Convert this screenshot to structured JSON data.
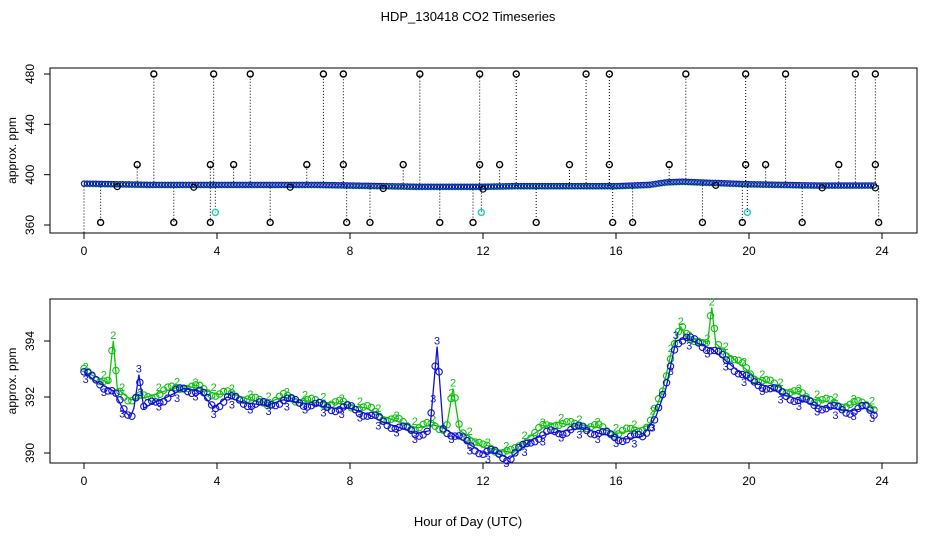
{
  "title": "HDP_130418  CO2 Timeseries",
  "xlabel": "Hour of Day (UTC)",
  "colors": {
    "black": "#000000",
    "blue": "#1010d0",
    "green": "#10c010",
    "cyan": "#20c8c8"
  },
  "chart_data": [
    {
      "type": "scatter",
      "name": "top",
      "ylabel": "approx. ppm",
      "xlim": [
        0,
        24
      ],
      "ylim": [
        360,
        480
      ],
      "xticks": [
        "0",
        "4",
        "8",
        "12",
        "16",
        "20",
        "24"
      ],
      "yticks": [
        "360",
        "400",
        "440",
        "480"
      ],
      "base": [
        [
          0,
          393
        ],
        [
          1,
          392.5
        ],
        [
          2,
          392
        ],
        [
          3,
          392
        ],
        [
          4,
          392
        ],
        [
          5,
          392
        ],
        [
          6,
          392
        ],
        [
          7,
          392
        ],
        [
          8,
          391.5
        ],
        [
          9,
          391
        ],
        [
          10,
          390.5
        ],
        [
          11,
          390.5
        ],
        [
          12,
          390.5
        ],
        [
          13,
          391
        ],
        [
          14,
          391
        ],
        [
          15,
          391
        ],
        [
          16,
          391
        ],
        [
          17,
          392
        ],
        [
          17.5,
          394
        ],
        [
          18,
          394.5
        ],
        [
          19,
          393.5
        ],
        [
          20,
          392.5
        ],
        [
          21,
          392
        ],
        [
          22,
          391.5
        ],
        [
          23,
          391.5
        ],
        [
          23.7,
          391.5
        ]
      ],
      "spikes_high": [
        2.1,
        3.9,
        5.0,
        7.2,
        7.8,
        10.1,
        11.9,
        13.0,
        15.1,
        15.8,
        18.1,
        19.9,
        21.1,
        23.2,
        23.8
      ],
      "spikes_mid": [
        1.6,
        3.8,
        4.5,
        6.7,
        7.8,
        9.6,
        11.9,
        12.5,
        14.6,
        15.8,
        17.6,
        19.9,
        20.5,
        22.7,
        23.8
      ],
      "spikes_low": [
        0.5,
        2.7,
        3.8,
        5.6,
        7.9,
        8.6,
        10.7,
        11.7,
        13.6,
        15.9,
        16.5,
        18.6,
        19.8,
        21.6,
        23.9
      ],
      "cyan_points": [
        [
          3.95,
          370
        ],
        [
          11.95,
          370
        ],
        [
          19.95,
          370
        ]
      ]
    },
    {
      "type": "line",
      "name": "bottom",
      "ylabel": "approx. ppm",
      "xlim": [
        0,
        24
      ],
      "ylim": [
        389.6,
        395.5
      ],
      "xticks": [
        "0",
        "4",
        "8",
        "12",
        "16",
        "20",
        "24"
      ],
      "yticks": [
        "390",
        "392",
        "394"
      ],
      "series": [
        {
          "name": "3",
          "color": "blue",
          "points": [
            [
              0,
              392.9
            ],
            [
              0.3,
              392.6
            ],
            [
              0.6,
              392.4
            ],
            [
              0.9,
              392.2
            ],
            [
              1.2,
              391.5
            ],
            [
              1.4,
              391.3
            ],
            [
              1.5,
              391.6
            ],
            [
              1.65,
              392.8
            ],
            [
              1.8,
              391.6
            ],
            [
              2.1,
              391.8
            ],
            [
              2.5,
              392.0
            ],
            [
              3.0,
              392.3
            ],
            [
              3.5,
              392.2
            ],
            [
              3.9,
              391.6
            ],
            [
              4.3,
              392.0
            ],
            [
              4.8,
              391.8
            ],
            [
              5.5,
              391.7
            ],
            [
              6.0,
              391.9
            ],
            [
              6.5,
              391.8
            ],
            [
              7.0,
              391.7
            ],
            [
              7.5,
              391.6
            ],
            [
              8.0,
              391.6
            ],
            [
              8.5,
              391.4
            ],
            [
              9.0,
              391.1
            ],
            [
              9.5,
              390.9
            ],
            [
              10.0,
              390.7
            ],
            [
              10.4,
              390.8
            ],
            [
              10.62,
              393.8
            ],
            [
              10.8,
              390.9
            ],
            [
              11.2,
              390.6
            ],
            [
              11.6,
              390.3
            ],
            [
              12.0,
              390.0
            ],
            [
              12.4,
              390.0
            ],
            [
              12.8,
              389.8
            ],
            [
              13.2,
              390.2
            ],
            [
              13.5,
              390.5
            ],
            [
              14.0,
              390.7
            ],
            [
              14.5,
              390.8
            ],
            [
              15.0,
              390.9
            ],
            [
              15.5,
              390.7
            ],
            [
              15.9,
              390.6
            ],
            [
              16.3,
              390.5
            ],
            [
              16.8,
              390.6
            ],
            [
              17.2,
              391.3
            ],
            [
              17.5,
              392.3
            ],
            [
              17.8,
              394.0
            ],
            [
              18.1,
              394.1
            ],
            [
              18.5,
              393.9
            ],
            [
              18.9,
              393.7
            ],
            [
              19.3,
              393.3
            ],
            [
              19.7,
              392.9
            ],
            [
              20.1,
              392.5
            ],
            [
              20.5,
              392.4
            ],
            [
              21.0,
              392.1
            ],
            [
              21.5,
              391.9
            ],
            [
              22.0,
              391.7
            ],
            [
              22.5,
              391.6
            ],
            [
              23.0,
              391.5
            ],
            [
              23.5,
              391.6
            ],
            [
              23.8,
              391.4
            ]
          ],
          "label_positions": [
            [
              1.65,
              392.8
            ],
            [
              10.62,
              393.8
            ],
            [
              17.8,
              394.0
            ]
          ]
        },
        {
          "name": "2",
          "color": "green",
          "points": [
            [
              0,
              392.9
            ],
            [
              0.4,
              392.7
            ],
            [
              0.75,
              392.5
            ],
            [
              0.88,
              394.0
            ],
            [
              1.0,
              392.3
            ],
            [
              1.4,
              391.9
            ],
            [
              1.9,
              392.0
            ],
            [
              2.4,
              392.2
            ],
            [
              3.0,
              392.4
            ],
            [
              3.5,
              392.3
            ],
            [
              4.0,
              392.1
            ],
            [
              4.5,
              392.1
            ],
            [
              5.0,
              391.9
            ],
            [
              5.5,
              391.8
            ],
            [
              6.0,
              392.0
            ],
            [
              6.5,
              391.9
            ],
            [
              7.0,
              391.8
            ],
            [
              7.5,
              391.8
            ],
            [
              8.0,
              391.7
            ],
            [
              8.5,
              391.6
            ],
            [
              9.0,
              391.3
            ],
            [
              9.5,
              391.1
            ],
            [
              10.0,
              390.9
            ],
            [
              10.5,
              391.0
            ],
            [
              10.9,
              390.9
            ],
            [
              11.1,
              392.3
            ],
            [
              11.3,
              390.8
            ],
            [
              11.7,
              390.5
            ],
            [
              12.0,
              390.2
            ],
            [
              12.5,
              390.1
            ],
            [
              12.9,
              390.0
            ],
            [
              13.3,
              390.5
            ],
            [
              13.8,
              390.9
            ],
            [
              14.2,
              391.1
            ],
            [
              14.6,
              391.0
            ],
            [
              15.0,
              391.0
            ],
            [
              15.5,
              390.9
            ],
            [
              16.0,
              390.7
            ],
            [
              16.5,
              390.8
            ],
            [
              17.0,
              391.0
            ],
            [
              17.4,
              392.2
            ],
            [
              17.7,
              393.8
            ],
            [
              17.95,
              394.5
            ],
            [
              18.2,
              394.0
            ],
            [
              18.5,
              394.1
            ],
            [
              18.75,
              393.9
            ],
            [
              18.88,
              395.2
            ],
            [
              19.0,
              393.9
            ],
            [
              19.4,
              393.5
            ],
            [
              19.8,
              393.1
            ],
            [
              20.2,
              392.7
            ],
            [
              20.6,
              392.5
            ],
            [
              21.0,
              392.3
            ],
            [
              21.5,
              392.1
            ],
            [
              22.0,
              391.9
            ],
            [
              22.5,
              391.8
            ],
            [
              23.0,
              391.7
            ],
            [
              23.5,
              391.8
            ],
            [
              23.8,
              391.6
            ]
          ],
          "label_positions": [
            [
              0.88,
              394.0
            ],
            [
              11.1,
              392.3
            ],
            [
              17.95,
              394.5
            ],
            [
              18.88,
              395.2
            ]
          ]
        }
      ]
    }
  ]
}
